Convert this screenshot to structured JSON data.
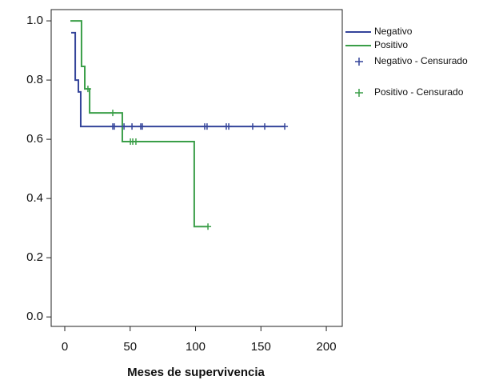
{
  "chart_data": {
    "type": "line",
    "drawstyle": "steps-post",
    "xlabel": "Meses de supervivencia",
    "xlim": [
      -10.4,
      212.2
    ],
    "ylim": [
      -0.032,
      1.038
    ],
    "xticks": [
      0,
      50,
      100,
      150,
      200
    ],
    "yticks": [
      {
        "value": 0,
        "label": "0.0"
      },
      0.2,
      0.4,
      0.6,
      0.8,
      {
        "value": 1,
        "label": "1.0"
      }
    ],
    "series": [
      {
        "name": "Negativo",
        "color": "#34449a",
        "kind": "step",
        "x": [
          4.9,
          8,
          10.4,
          12.2,
          168.2
        ],
        "values": [
          0.96,
          0.8,
          0.76,
          0.643,
          0.643
        ]
      },
      {
        "name": "Positivo",
        "color": "#3a9e48",
        "kind": "step",
        "x": [
          4.3,
          12.8,
          15.3,
          19,
          44,
          99,
          109.5
        ],
        "values": [
          1.0,
          0.846,
          0.77,
          0.689,
          0.592,
          0.305,
          0.305
        ]
      },
      {
        "name": "Negativo - Censurado",
        "color": "#34449a",
        "kind": "censored",
        "x": [
          36.7,
          37.9,
          45.3,
          51.4,
          58.1,
          59.3,
          107,
          108.8,
          123.5,
          125.4,
          143.7,
          152.9,
          168.2
        ],
        "values": [
          0.643,
          0.643,
          0.643,
          0.643,
          0.643,
          0.643,
          0.643,
          0.643,
          0.643,
          0.643,
          0.643,
          0.643,
          0.643
        ]
      },
      {
        "name": "Positivo - Censurado",
        "color": "#3a9e48",
        "kind": "censored",
        "x": [
          17.7,
          36.7,
          50.2,
          52,
          54.4,
          109.5
        ],
        "values": [
          0.77,
          0.689,
          0.592,
          0.592,
          0.592,
          0.305
        ]
      }
    ]
  }
}
